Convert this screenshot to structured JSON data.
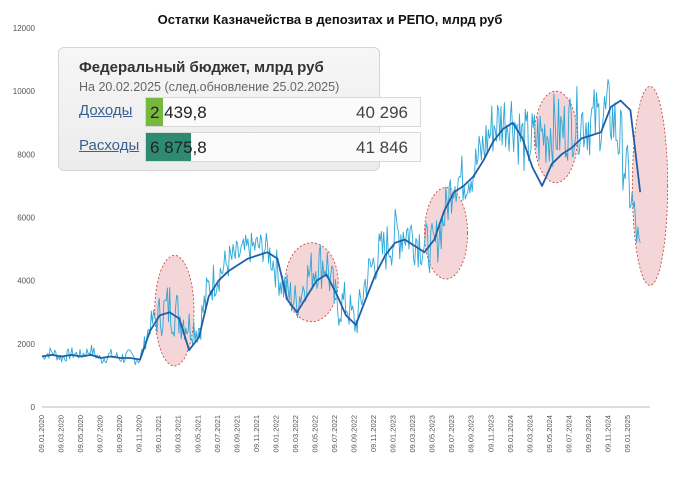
{
  "chart_data": {
    "type": "line",
    "title": "Остатки Казначейства в депозитах и РЕПО, млрд руб",
    "ylim": [
      0,
      12000
    ],
    "y_ticks": [
      "0",
      "2000",
      "4000",
      "6000",
      "8000",
      "10000",
      "12000"
    ],
    "x_ticks": [
      "09.01.2020",
      "09.03.2020",
      "09.05.2020",
      "09.07.2020",
      "09.09.2020",
      "09.11.2020",
      "09.01.2021",
      "09.03.2021",
      "09.05.2021",
      "09.07.2021",
      "09.09.2021",
      "09.11.2021",
      "09.01.2022",
      "09.03.2022",
      "09.05.2022",
      "09.07.2022",
      "09.09.2022",
      "09.11.2022",
      "09.01.2023",
      "09.03.2023",
      "09.05.2023",
      "09.07.2023",
      "09.09.2023",
      "09.11.2023",
      "09.01.2024",
      "09.03.2024",
      "09.05.2024",
      "09.07.2024",
      "09.09.2024",
      "09.11.2024",
      "09.01.2025"
    ],
    "grid": false,
    "series": [
      {
        "role": "daily",
        "color": "#2aa7d6",
        "x": [
          0,
          1,
          2,
          3,
          4,
          5,
          6,
          7,
          8,
          9,
          10,
          11,
          12,
          13,
          14,
          15,
          16,
          17,
          18,
          19,
          20,
          21,
          22,
          23,
          24,
          25,
          26,
          27,
          28,
          29,
          30,
          31,
          32,
          33,
          34,
          35,
          36,
          37,
          38,
          39,
          40,
          41,
          42,
          43,
          44,
          45,
          46,
          47,
          48,
          49,
          50,
          51,
          52,
          53,
          54,
          55,
          56,
          57,
          58,
          59,
          60,
          61
        ],
        "values": [
          1600,
          1750,
          1550,
          1700,
          1650,
          1800,
          1500,
          1650,
          1550,
          1600,
          1500,
          2600,
          2900,
          3200,
          2900,
          2600,
          2500,
          3800,
          4200,
          4600,
          4800,
          5000,
          5100,
          5000,
          4300,
          3600,
          3300,
          4100,
          4500,
          4600,
          3200,
          3300,
          2600,
          4000,
          4700,
          5000,
          5400,
          5600,
          5400,
          5100,
          5000,
          6000,
          7300,
          7200,
          7500,
          8200,
          8900,
          9100,
          9200,
          8400,
          8400,
          8600,
          8800,
          8700,
          9000,
          9100,
          9000,
          9200,
          9300,
          8400,
          6800,
          4800
        ],
        "amplitude": [
          150,
          200,
          180,
          200,
          160,
          200,
          180,
          200,
          200,
          250,
          200,
          350,
          700,
          900,
          800,
          600,
          600,
          700,
          600,
          600,
          500,
          500,
          500,
          500,
          700,
          700,
          600,
          700,
          800,
          900,
          800,
          700,
          600,
          700,
          800,
          800,
          900,
          900,
          900,
          800,
          800,
          800,
          900,
          800,
          800,
          900,
          1000,
          1000,
          1100,
          1100,
          1100,
          1100,
          1200,
          1100,
          1100,
          1100,
          1100,
          1100,
          1200,
          1200,
          1000,
          600
        ]
      },
      {
        "role": "average",
        "color": "#1f5fa8",
        "x": [
          0,
          1,
          2,
          3,
          4,
          5,
          6,
          7,
          8,
          9,
          10,
          11,
          12,
          13,
          14,
          15,
          16,
          17,
          18,
          19,
          20,
          21,
          22,
          23,
          24,
          25,
          26,
          27,
          28,
          29,
          30,
          31,
          32,
          33,
          34,
          35,
          36,
          37,
          38,
          39,
          40,
          41,
          42,
          43,
          44,
          45,
          46,
          47,
          48,
          49,
          50,
          51,
          52,
          53,
          54,
          55,
          56,
          57,
          58,
          59,
          60,
          61
        ],
        "values": [
          1600,
          1650,
          1600,
          1650,
          1600,
          1650,
          1550,
          1600,
          1550,
          1550,
          1500,
          2400,
          2900,
          3000,
          2800,
          1800,
          2200,
          3500,
          4000,
          4300,
          4500,
          4700,
          4800,
          4900,
          4700,
          3400,
          3000,
          3500,
          4000,
          4200,
          3600,
          2900,
          2600,
          3400,
          4200,
          4800,
          5200,
          5300,
          5100,
          4900,
          5300,
          6200,
          6800,
          7000,
          7300,
          7800,
          8400,
          8800,
          9000,
          8500,
          7600,
          7000,
          7700,
          8000,
          8200,
          8500,
          8600,
          8700,
          9500,
          9700,
          9400,
          6800
        ]
      }
    ],
    "highlight_regions": [
      {
        "x_center": 13.5,
        "y_center": 3050,
        "x_radius": 2.0,
        "y_radius": 1750,
        "color": "#e8a5a8"
      },
      {
        "x_center": 27.5,
        "y_center": 3950,
        "x_radius": 2.7,
        "y_radius": 1250,
        "color": "#e8a5a8"
      },
      {
        "x_center": 41.2,
        "y_center": 5500,
        "x_radius": 2.2,
        "y_radius": 1450,
        "color": "#e8a5a8"
      },
      {
        "x_center": 52.4,
        "y_center": 8550,
        "x_radius": 2.2,
        "y_radius": 1450,
        "color": "#e8a5a8"
      },
      {
        "x_center": 62.0,
        "y_center": 7000,
        "x_radius": 1.8,
        "y_radius": 3150,
        "color": "#e8a5a8"
      }
    ]
  },
  "inset": {
    "title": "Федеральный бюджет, млрд руб",
    "subtitle": "На 20.02.2025 (след.обновление 25.02.2025)",
    "rows": [
      {
        "label": "Доходы",
        "value": "2 439,8",
        "total": "40 296",
        "fill": 0.0605,
        "bar_color": "#78b83e"
      },
      {
        "label": "Расходы",
        "value": "6 875,8",
        "total": "41 846",
        "fill": 0.1643,
        "bar_color": "#2f8a72"
      }
    ]
  }
}
